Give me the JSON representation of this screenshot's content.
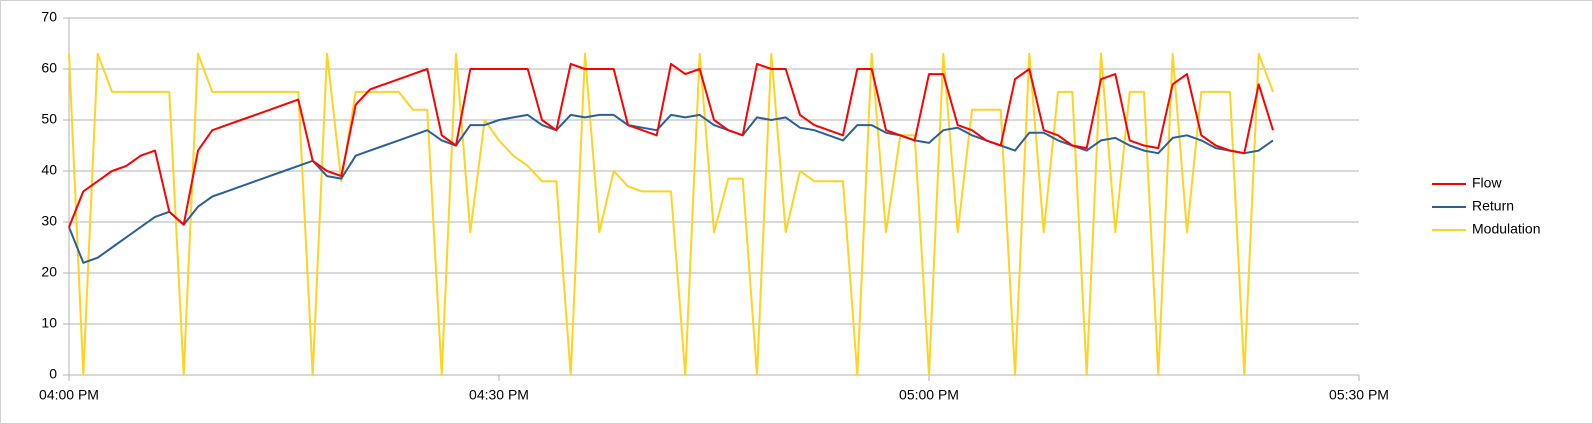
{
  "chart_data": {
    "type": "line",
    "x": [
      "04:00 PM",
      "04:01 PM",
      "04:02 PM",
      "04:03 PM",
      "04:04 PM",
      "04:05 PM",
      "04:06 PM",
      "04:07 PM",
      "04:08 PM",
      "04:09 PM",
      "04:10 PM",
      "04:11 PM",
      "04:12 PM",
      "04:13 PM",
      "04:14 PM",
      "04:15 PM",
      "04:16 PM",
      "04:17 PM",
      "04:18 PM",
      "04:19 PM",
      "04:20 PM",
      "04:21 PM",
      "04:22 PM",
      "04:23 PM",
      "04:24 PM",
      "04:25 PM",
      "04:26 PM",
      "04:27 PM",
      "04:28 PM",
      "04:29 PM",
      "04:30 PM",
      "04:31 PM",
      "04:32 PM",
      "04:33 PM",
      "04:34 PM",
      "04:35 PM",
      "04:36 PM",
      "04:37 PM",
      "04:38 PM",
      "04:39 PM",
      "04:40 PM",
      "04:41 PM",
      "04:42 PM",
      "04:43 PM",
      "04:44 PM",
      "04:45 PM",
      "04:46 PM",
      "04:47 PM",
      "04:48 PM",
      "04:49 PM",
      "04:50 PM",
      "04:51 PM",
      "04:52 PM",
      "04:53 PM",
      "04:54 PM",
      "04:55 PM",
      "04:56 PM",
      "04:57 PM",
      "04:58 PM",
      "04:59 PM",
      "05:00 PM",
      "05:01 PM",
      "05:02 PM",
      "05:03 PM",
      "05:04 PM",
      "05:05 PM",
      "05:06 PM",
      "05:07 PM",
      "05:08 PM",
      "05:09 PM",
      "05:10 PM",
      "05:11 PM",
      "05:12 PM",
      "05:13 PM",
      "05:14 PM",
      "05:15 PM",
      "05:16 PM",
      "05:17 PM",
      "05:18 PM",
      "05:19 PM",
      "05:20 PM",
      "05:21 PM",
      "05:22 PM",
      "05:23 PM",
      "05:24 PM"
    ],
    "series": [
      {
        "name": "Flow",
        "color": "#ff0000",
        "values": [
          29,
          36,
          38,
          40,
          41,
          43,
          44,
          32,
          29.5,
          44,
          48,
          49,
          50,
          51,
          52,
          53,
          54,
          42,
          40,
          39,
          53,
          56,
          57,
          58,
          59,
          60,
          47,
          45,
          60,
          60,
          60,
          60,
          60,
          50,
          48,
          61,
          60,
          60,
          60,
          49,
          48,
          47,
          61,
          59,
          60,
          50,
          48,
          47,
          61,
          60,
          60,
          51,
          49,
          48,
          47,
          60,
          60,
          48,
          47,
          46,
          59,
          59,
          49,
          48,
          46,
          45,
          58,
          60,
          48,
          47,
          45,
          44.5,
          58,
          59,
          46,
          45,
          44.5,
          57,
          59,
          47,
          45,
          44,
          43.5,
          57,
          48
        ]
      },
      {
        "name": "Return",
        "color": "#2a6099",
        "values": [
          29,
          22,
          23,
          25,
          27,
          29,
          31,
          32,
          29.5,
          33,
          35,
          36,
          37,
          38,
          39,
          40,
          41,
          42,
          39,
          38.5,
          43,
          44,
          45,
          46,
          47,
          48,
          46,
          45,
          49,
          49,
          50,
          50.5,
          51,
          49,
          48,
          51,
          50.5,
          51,
          51,
          49,
          48.5,
          48,
          51,
          50.5,
          51,
          49,
          48,
          47,
          50.5,
          50,
          50.5,
          48.5,
          48,
          47,
          46,
          49,
          49,
          47.5,
          47,
          46,
          45.5,
          48,
          48.5,
          47,
          46,
          45,
          44,
          47.5,
          47.5,
          46,
          45,
          44,
          46,
          46.5,
          45,
          44,
          43.5,
          46.5,
          47,
          46,
          44.5,
          44,
          43.5,
          44,
          46
        ]
      },
      {
        "name": "Modulation",
        "color": "#ffd320",
        "values": [
          63,
          0,
          63,
          55.5,
          55.5,
          55.5,
          55.5,
          55.5,
          0,
          63,
          55.5,
          55.5,
          55.5,
          55.5,
          55.5,
          55.5,
          55.5,
          0,
          63,
          38,
          55.5,
          55.5,
          55.5,
          55.5,
          52,
          52,
          0,
          63,
          28,
          50,
          46,
          43,
          41,
          38,
          38,
          0,
          63,
          28,
          40,
          37,
          36,
          36,
          36,
          0,
          63,
          28,
          38.5,
          38.5,
          0,
          63,
          28,
          40,
          38,
          38,
          38,
          0,
          63,
          28,
          47,
          47,
          0,
          63,
          28,
          52,
          52,
          52,
          0,
          63,
          28,
          55.5,
          55.5,
          0,
          63,
          28,
          55.5,
          55.5,
          0,
          63,
          28,
          55.5,
          55.5,
          55.5,
          0,
          63,
          55.5
        ]
      }
    ],
    "xlim": [
      "04:00 PM",
      "05:30 PM"
    ],
    "xticks": [
      "04:00 PM",
      "04:30 PM",
      "05:00 PM",
      "05:30 PM"
    ],
    "ylim": [
      0,
      70
    ],
    "yticks": [
      0,
      10,
      20,
      30,
      40,
      50,
      60,
      70
    ],
    "grid": true,
    "legend": "right"
  }
}
